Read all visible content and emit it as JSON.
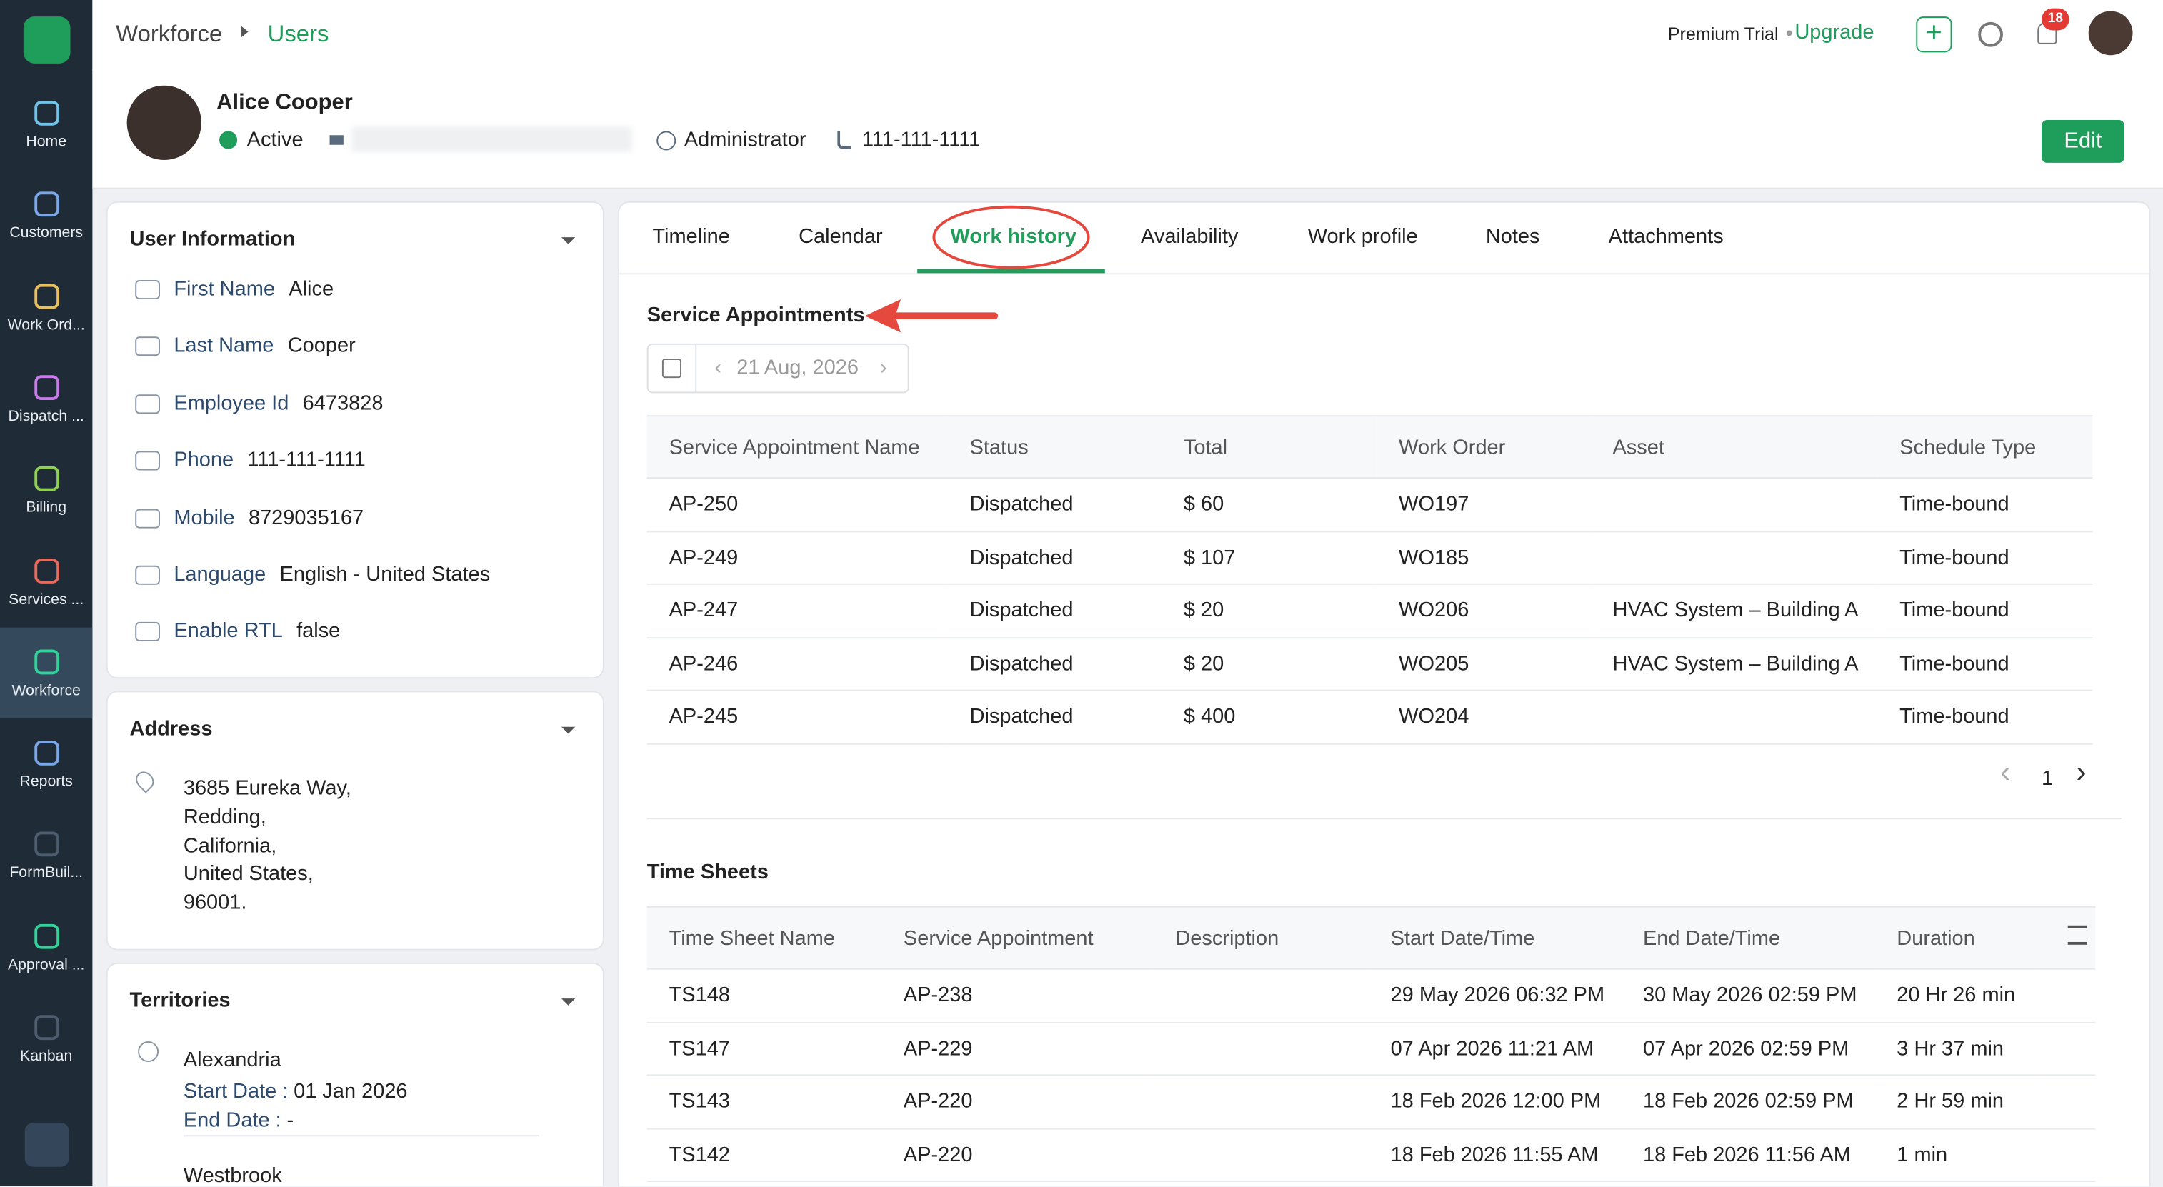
{
  "sidebar": {
    "items": [
      "Home",
      "Customers",
      "Work Ord...",
      "Dispatch ...",
      "Billing",
      "Services ...",
      "Workforce",
      "Reports",
      "FormBuil...",
      "Approval ...",
      "Kanban"
    ],
    "active": 6
  },
  "breadcrumb": [
    "Workforce",
    "Users"
  ],
  "topbar": {
    "plan": "Premium Trial",
    "upgrade": "Upgrade",
    "notifications": "18"
  },
  "profile": {
    "name": "Alice Cooper",
    "status": "Active",
    "role": "Administrator",
    "phone": "111-111-1111",
    "edit": "Edit"
  },
  "user_info": {
    "title": "User Information",
    "fields": [
      {
        "label": "First Name",
        "value": "Alice"
      },
      {
        "label": "Last Name",
        "value": "Cooper"
      },
      {
        "label": "Employee Id",
        "value": "6473828"
      },
      {
        "label": "Phone",
        "value": "111-111-1111"
      },
      {
        "label": "Mobile",
        "value": "8729035167"
      },
      {
        "label": "Language",
        "value": "English - United States"
      },
      {
        "label": "Enable RTL",
        "value": "false"
      }
    ]
  },
  "address": {
    "title": "Address",
    "lines": [
      "3685 Eureka Way,",
      "Redding,",
      "California,",
      "United States,",
      "96001."
    ]
  },
  "territories": {
    "title": "Territories",
    "items": [
      {
        "name": "Alexandria",
        "start_label": "Start Date :",
        "start": "01 Jan 2026",
        "end_label": "End Date :",
        "end": "-"
      },
      {
        "name": "Westbrook"
      }
    ]
  },
  "tabs": {
    "items": [
      "Timeline",
      "Calendar",
      "Work history",
      "Availability",
      "Work profile",
      "Notes",
      "Attachments"
    ],
    "active": 2
  },
  "service_appointments": {
    "title": "Service Appointments",
    "date": "21 Aug, 2026",
    "columns": [
      "Service Appointment Name",
      "Status",
      "Total",
      "Work Order",
      "Asset",
      "Schedule Type"
    ],
    "rows": [
      [
        "AP-250",
        "Dispatched",
        "$ 60",
        "WO197",
        "",
        "Time-bound"
      ],
      [
        "AP-249",
        "Dispatched",
        "$ 107",
        "WO185",
        "",
        "Time-bound"
      ],
      [
        "AP-247",
        "Dispatched",
        "$ 20",
        "WO206",
        "HVAC System – Building A",
        "Time-bound"
      ],
      [
        "AP-246",
        "Dispatched",
        "$ 20",
        "WO205",
        "HVAC System – Building A",
        "Time-bound"
      ],
      [
        "AP-245",
        "Dispatched",
        "$ 400",
        "WO204",
        "",
        "Time-bound"
      ]
    ],
    "page": "1"
  },
  "time_sheets": {
    "title": "Time Sheets",
    "columns": [
      "Time Sheet Name",
      "Service Appointment",
      "Description",
      "Start Date/Time",
      "End Date/Time",
      "Duration"
    ],
    "rows": [
      [
        "TS148",
        "AP-238",
        "",
        "29 May 2026 06:32 PM",
        "30 May 2026 02:59 PM",
        "20 Hr 26 min"
      ],
      [
        "TS147",
        "AP-229",
        "",
        "07 Apr 2026 11:21 AM",
        "07 Apr 2026 02:59 PM",
        "3 Hr 37 min"
      ],
      [
        "TS143",
        "AP-220",
        "",
        "18 Feb 2026 12:00 PM",
        "18 Feb 2026 02:59 PM",
        "2 Hr 59 min"
      ],
      [
        "TS142",
        "AP-220",
        "",
        "18 Feb 2026 11:55 AM",
        "18 Feb 2026 11:56 AM",
        "1 min"
      ]
    ]
  }
}
